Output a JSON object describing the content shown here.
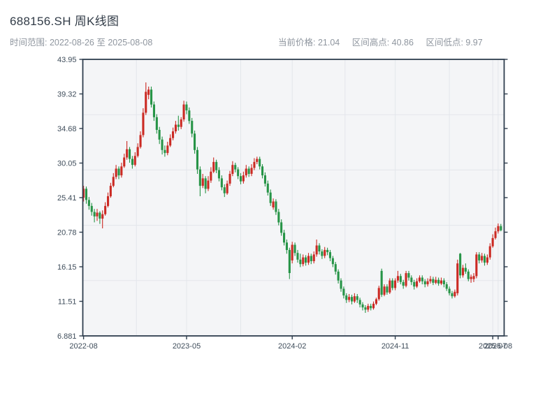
{
  "header": {
    "title": "688156.SH 周K线图",
    "subtitle": "时间范围: 2022-08-26 至 2025-08-08",
    "stat_current": "当前价格: 21.04",
    "stat_high": "区间高点: 40.86",
    "stat_low": "区间低点: 9.97"
  },
  "chart_data": {
    "type": "candlestick",
    "symbol": "688156.SH",
    "period": "weekly",
    "title": "688156.SH 周K线图",
    "date_start": "2022-08-26",
    "date_end": "2025-08-08",
    "current_price": 21.04,
    "range_high": 40.86,
    "range_low": 9.97,
    "y_min": 6.881,
    "y_max": 43.95,
    "y_tick_labels": [
      "43.95",
      "39.32",
      "34.68",
      "30.05",
      "25.41",
      "20.78",
      "16.15",
      "11.51",
      "6.881"
    ],
    "x_ticks": [
      {
        "label": "2022-08",
        "i": 0
      },
      {
        "label": "2023-05",
        "i": 38
      },
      {
        "label": "2024-02",
        "i": 77
      },
      {
        "label": "2024-11",
        "i": 115
      },
      {
        "label": "2025-07",
        "i": 151
      },
      {
        "label": "2025-08",
        "i": 153
      }
    ],
    "up_color": "#cb2a23",
    "down_color": "#279447",
    "grid_on": true,
    "ohlc": [
      [
        25.4,
        27.0,
        24.9,
        26.6
      ],
      [
        26.6,
        26.9,
        24.6,
        25.1
      ],
      [
        25.1,
        25.5,
        23.8,
        24.3
      ],
      [
        24.3,
        24.7,
        23.0,
        23.5
      ],
      [
        23.5,
        23.9,
        22.1,
        22.9
      ],
      [
        22.9,
        23.9,
        22.3,
        23.4
      ],
      [
        23.4,
        23.6,
        21.9,
        22.6
      ],
      [
        22.6,
        23.7,
        21.3,
        23.2
      ],
      [
        23.2,
        24.8,
        23.0,
        24.3
      ],
      [
        24.3,
        26.1,
        24.1,
        25.6
      ],
      [
        25.6,
        27.4,
        25.4,
        27.0
      ],
      [
        27.0,
        28.7,
        26.8,
        28.2
      ],
      [
        28.2,
        29.8,
        27.9,
        29.3
      ],
      [
        29.3,
        29.6,
        27.9,
        28.4
      ],
      [
        28.4,
        30.1,
        28.1,
        29.6
      ],
      [
        29.6,
        31.3,
        29.4,
        30.8
      ],
      [
        30.8,
        33.0,
        30.5,
        31.9
      ],
      [
        31.9,
        32.2,
        30.1,
        30.6
      ],
      [
        30.6,
        31.0,
        29.3,
        29.8
      ],
      [
        29.8,
        31.5,
        29.6,
        31.0
      ],
      [
        31.0,
        32.7,
        30.8,
        32.2
      ],
      [
        32.2,
        34.3,
        32.0,
        33.8
      ],
      [
        33.8,
        37.4,
        33.5,
        36.8
      ],
      [
        36.8,
        40.86,
        36.5,
        39.6
      ],
      [
        39.2,
        40.3,
        38.6,
        39.9
      ],
      [
        39.9,
        40.3,
        37.5,
        37.9
      ],
      [
        37.9,
        38.3,
        35.7,
        36.2
      ],
      [
        36.2,
        36.6,
        34.0,
        34.5
      ],
      [
        34.5,
        34.9,
        32.6,
        33.2
      ],
      [
        33.2,
        33.6,
        31.2,
        31.8
      ],
      [
        31.8,
        32.4,
        30.9,
        31.4
      ],
      [
        31.4,
        32.9,
        31.1,
        32.4
      ],
      [
        32.4,
        33.9,
        32.2,
        33.4
      ],
      [
        33.4,
        34.8,
        33.1,
        34.3
      ],
      [
        34.3,
        35.7,
        34.0,
        35.2
      ],
      [
        35.2,
        36.4,
        34.4,
        34.9
      ],
      [
        34.9,
        36.2,
        34.6,
        35.9
      ],
      [
        35.9,
        38.4,
        35.6,
        37.9
      ],
      [
        37.9,
        38.3,
        36.6,
        37.1
      ],
      [
        37.1,
        37.5,
        35.3,
        35.7
      ],
      [
        35.7,
        36.1,
        33.5,
        34.0
      ],
      [
        34.0,
        34.4,
        31.3,
        31.8
      ],
      [
        31.8,
        32.2,
        28.6,
        29.2
      ],
      [
        29.2,
        29.6,
        25.6,
        27.0
      ],
      [
        27.0,
        28.6,
        26.7,
        28.0
      ],
      [
        28.0,
        28.3,
        26.0,
        26.6
      ],
      [
        26.6,
        28.3,
        26.3,
        27.7
      ],
      [
        27.7,
        29.5,
        27.4,
        28.9
      ],
      [
        28.9,
        30.8,
        28.7,
        30.2
      ],
      [
        30.2,
        30.5,
        28.7,
        29.1
      ],
      [
        29.1,
        29.5,
        27.6,
        28.0
      ],
      [
        28.0,
        28.4,
        26.4,
        26.8
      ],
      [
        26.8,
        27.2,
        25.5,
        26.0
      ],
      [
        26.0,
        27.7,
        25.8,
        27.3
      ],
      [
        27.3,
        29.0,
        27.0,
        28.6
      ],
      [
        28.6,
        30.3,
        28.3,
        29.8
      ],
      [
        29.8,
        30.1,
        28.8,
        29.2
      ],
      [
        29.2,
        29.5,
        27.9,
        28.3
      ],
      [
        28.3,
        28.7,
        27.2,
        27.6
      ],
      [
        27.6,
        28.9,
        27.3,
        28.4
      ],
      [
        28.4,
        29.8,
        28.1,
        29.3
      ],
      [
        29.3,
        29.6,
        28.2,
        28.6
      ],
      [
        28.6,
        29.9,
        28.3,
        29.4
      ],
      [
        29.4,
        30.7,
        29.1,
        30.2
      ],
      [
        30.2,
        30.9,
        29.9,
        30.6
      ],
      [
        30.6,
        30.9,
        29.2,
        29.6
      ],
      [
        29.6,
        29.9,
        28.0,
        28.4
      ],
      [
        28.4,
        28.8,
        26.9,
        27.3
      ],
      [
        27.3,
        27.7,
        25.7,
        26.1
      ],
      [
        26.1,
        26.5,
        24.3,
        24.7
      ],
      [
        24.1,
        25.3,
        23.8,
        24.9
      ],
      [
        24.9,
        25.2,
        23.1,
        23.5
      ],
      [
        23.5,
        23.9,
        21.7,
        22.1
      ],
      [
        22.1,
        22.5,
        20.3,
        20.7
      ],
      [
        20.7,
        21.1,
        19.0,
        19.4
      ],
      [
        19.4,
        19.8,
        17.9,
        18.4
      ],
      [
        18.4,
        18.7,
        14.5,
        15.3
      ],
      [
        17.0,
        19.5,
        16.6,
        19.1
      ],
      [
        19.1,
        19.4,
        17.6,
        18.0
      ],
      [
        18.0,
        18.4,
        16.7,
        17.1
      ],
      [
        17.1,
        17.9,
        16.1,
        16.5
      ],
      [
        16.5,
        17.8,
        16.2,
        17.4
      ],
      [
        17.4,
        17.7,
        16.3,
        16.7
      ],
      [
        16.7,
        18.0,
        16.4,
        17.6
      ],
      [
        17.6,
        17.9,
        16.5,
        16.9
      ],
      [
        16.9,
        18.2,
        16.6,
        17.8
      ],
      [
        17.8,
        19.8,
        17.5,
        19.0
      ],
      [
        19.0,
        19.3,
        17.8,
        18.2
      ],
      [
        18.2,
        18.5,
        17.2,
        17.6
      ],
      [
        17.6,
        18.8,
        17.3,
        18.4
      ],
      [
        18.4,
        18.7,
        17.7,
        18.1
      ],
      [
        18.1,
        18.4,
        16.9,
        17.3
      ],
      [
        17.3,
        17.6,
        16.1,
        16.5
      ],
      [
        16.5,
        16.8,
        15.1,
        15.5
      ],
      [
        15.5,
        15.8,
        13.9,
        14.3
      ],
      [
        14.3,
        14.6,
        12.8,
        13.2
      ],
      [
        13.2,
        13.5,
        11.9,
        12.3
      ],
      [
        12.3,
        12.6,
        11.3,
        11.7
      ],
      [
        11.7,
        12.5,
        11.4,
        12.1
      ],
      [
        12.1,
        12.4,
        11.1,
        11.5
      ],
      [
        11.5,
        12.6,
        11.3,
        12.2
      ],
      [
        12.2,
        12.5,
        11.3,
        11.7
      ],
      [
        11.7,
        12.0,
        10.7,
        11.1
      ],
      [
        11.1,
        11.4,
        10.3,
        10.7
      ],
      [
        10.7,
        11.0,
        9.97,
        10.4
      ],
      [
        10.4,
        11.2,
        10.1,
        10.9
      ],
      [
        10.9,
        11.2,
        10.3,
        10.6
      ],
      [
        10.6,
        11.5,
        10.4,
        11.2
      ],
      [
        11.2,
        12.0,
        11.0,
        11.8
      ],
      [
        11.8,
        13.6,
        11.6,
        13.3
      ],
      [
        15.6,
        15.9,
        12.1,
        12.4
      ],
      [
        12.4,
        13.8,
        12.2,
        13.5
      ],
      [
        13.5,
        13.8,
        12.4,
        12.7
      ],
      [
        12.7,
        14.6,
        12.5,
        14.3
      ],
      [
        14.3,
        14.6,
        13.0,
        13.3
      ],
      [
        13.3,
        14.6,
        13.0,
        14.3
      ],
      [
        14.3,
        15.6,
        14.0,
        14.9
      ],
      [
        14.9,
        15.2,
        13.8,
        14.1
      ],
      [
        14.1,
        14.4,
        13.2,
        13.6
      ],
      [
        13.6,
        15.6,
        13.4,
        15.3
      ],
      [
        15.3,
        15.6,
        14.3,
        14.7
      ],
      [
        14.7,
        15.0,
        13.7,
        14.1
      ],
      [
        14.1,
        14.4,
        13.1,
        13.5
      ],
      [
        13.5,
        14.6,
        13.3,
        14.2
      ],
      [
        14.2,
        15.0,
        14.0,
        14.7
      ],
      [
        14.7,
        15.0,
        13.8,
        14.2
      ],
      [
        14.2,
        14.5,
        13.4,
        13.8
      ],
      [
        13.8,
        14.6,
        13.5,
        14.2
      ],
      [
        14.2,
        14.9,
        13.9,
        14.5
      ],
      [
        14.5,
        14.8,
        13.7,
        14.0
      ],
      [
        14.0,
        14.8,
        13.8,
        14.4
      ],
      [
        14.4,
        14.7,
        13.6,
        13.9
      ],
      [
        13.9,
        14.7,
        13.7,
        14.3
      ],
      [
        14.3,
        14.6,
        13.4,
        13.8
      ],
      [
        13.8,
        14.1,
        12.9,
        13.2
      ],
      [
        13.2,
        13.5,
        12.3,
        12.6
      ],
      [
        12.6,
        12.9,
        11.9,
        12.2
      ],
      [
        12.2,
        13.1,
        12.0,
        12.8
      ],
      [
        12.6,
        17.1,
        12.3,
        16.6
      ],
      [
        17.9,
        18.0,
        14.6,
        15.0
      ],
      [
        15.0,
        16.4,
        14.7,
        16.0
      ],
      [
        16.0,
        16.6,
        15.2,
        15.5
      ],
      [
        15.5,
        15.8,
        14.2,
        14.5
      ],
      [
        14.5,
        15.1,
        14.0,
        14.8
      ],
      [
        14.5,
        15.3,
        14.1,
        14.9
      ],
      [
        14.9,
        18.1,
        14.6,
        17.8
      ],
      [
        17.8,
        18.1,
        16.6,
        17.0
      ],
      [
        17.0,
        18.0,
        16.7,
        17.6
      ],
      [
        17.6,
        17.9,
        16.3,
        16.7
      ],
      [
        16.7,
        17.8,
        16.4,
        17.4
      ],
      [
        17.4,
        19.3,
        17.1,
        18.9
      ],
      [
        18.9,
        20.5,
        18.7,
        20.0
      ],
      [
        20.0,
        21.4,
        19.8,
        20.9
      ],
      [
        20.9,
        21.95,
        20.6,
        21.6
      ],
      [
        21.6,
        21.9,
        20.9,
        21.04
      ]
    ]
  }
}
